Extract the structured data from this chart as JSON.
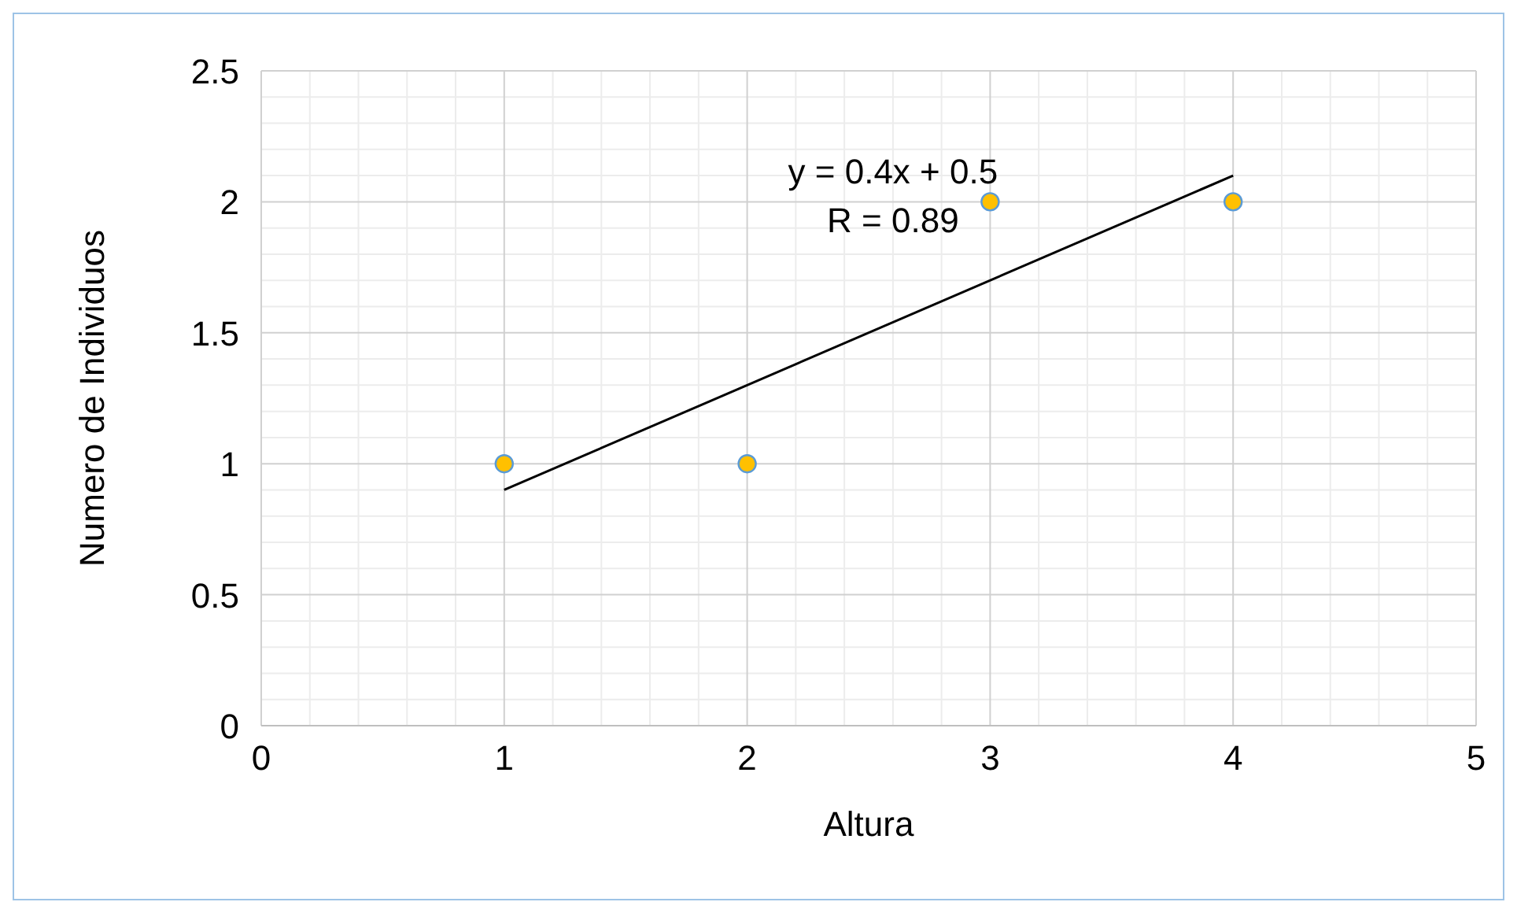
{
  "chart_data": {
    "type": "scatter",
    "xlabel": "Altura",
    "ylabel": "Numero de Individuos",
    "xlim": [
      0,
      5
    ],
    "xticks": [
      0,
      1,
      2,
      3,
      4,
      5
    ],
    "ylim": [
      0,
      2.5
    ],
    "yticks": [
      0,
      0.5,
      1,
      1.5,
      2,
      2.5
    ],
    "grid": true,
    "annotations": [
      "y = 0.4x + 0.5",
      "R = 0.89"
    ],
    "series": [
      {
        "marker": "circle",
        "color": "#ffc000",
        "x": [
          1,
          2,
          3,
          4
        ],
        "values": [
          1,
          1,
          2,
          2
        ]
      },
      {
        "type": "line",
        "color": "#000000",
        "x": [
          1,
          4
        ],
        "values": [
          0.9,
          2.1
        ]
      }
    ]
  }
}
